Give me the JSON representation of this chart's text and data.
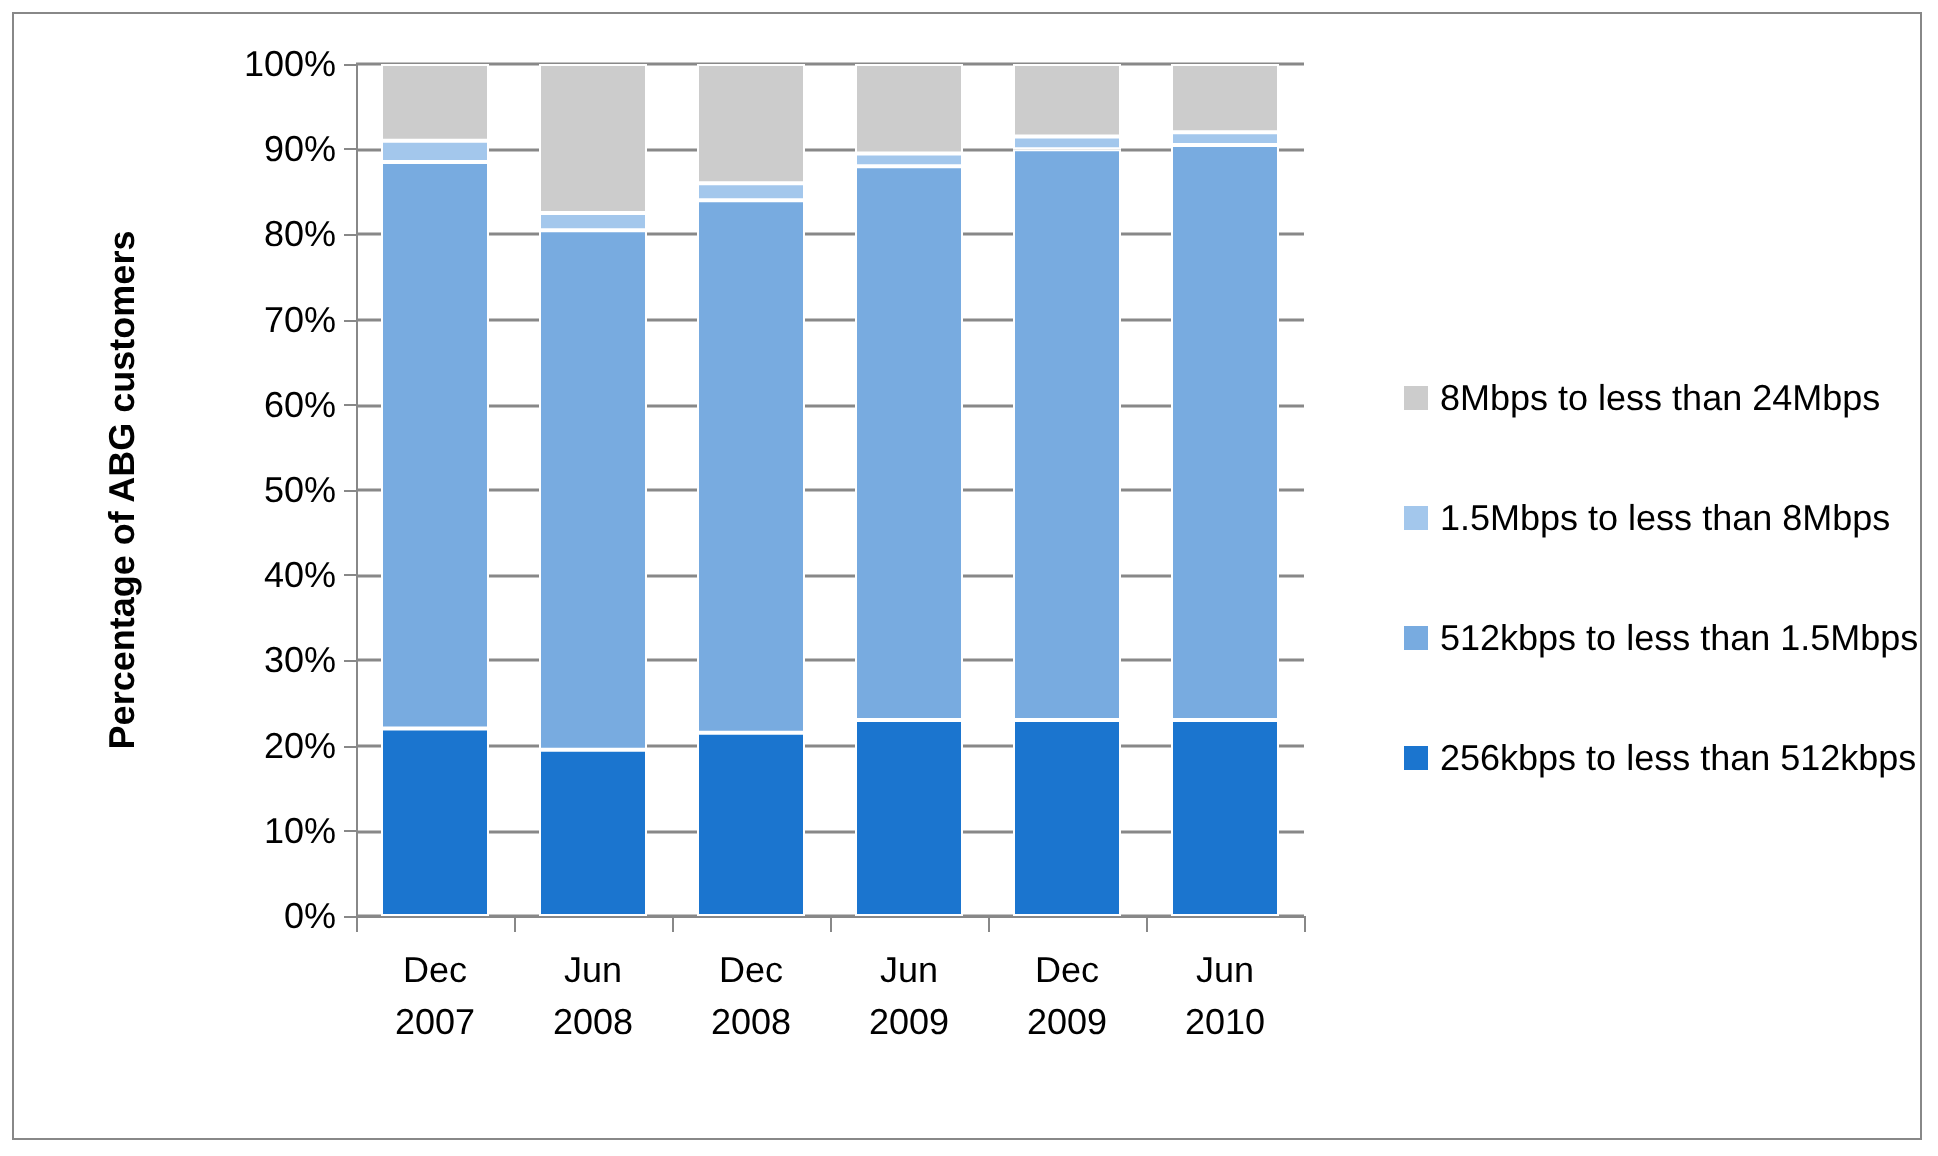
{
  "chart_data": {
    "type": "bar",
    "stacked": true,
    "ylabel": "Percentage of ABG customers",
    "categories": [
      "Dec\n2007",
      "Jun\n2008",
      "Dec\n2008",
      "Jun\n2009",
      "Dec\n2009",
      "Jun\n2010"
    ],
    "series": [
      {
        "name": "256kbps to less than 512kbps",
        "color": "#1b75cf",
        "values": [
          22,
          19.5,
          21.5,
          23,
          23,
          23
        ]
      },
      {
        "name": "512kbps to less than 1.5Mbps",
        "color": "#78abe0",
        "values": [
          66.5,
          61,
          62.5,
          65,
          67,
          67.5
        ]
      },
      {
        "name": "1.5Mbps to less than 8Mbps",
        "color": "#a3c7ec",
        "values": [
          2.5,
          2,
          2,
          1.5,
          1.5,
          1.5
        ]
      },
      {
        "name": "8Mbps to less than 24Mbps",
        "color": "#cccccc",
        "values": [
          9,
          17.5,
          14,
          10.5,
          8.5,
          8
        ]
      }
    ],
    "ylim": [
      0,
      100
    ],
    "yticks": [
      {
        "value": 0,
        "label": "0%"
      },
      {
        "value": 10,
        "label": "10%"
      },
      {
        "value": 20,
        "label": "20%"
      },
      {
        "value": 30,
        "label": "30%"
      },
      {
        "value": 40,
        "label": "40%"
      },
      {
        "value": 50,
        "label": "50%"
      },
      {
        "value": 60,
        "label": "60%"
      },
      {
        "value": 70,
        "label": "70%"
      },
      {
        "value": 80,
        "label": "80%"
      },
      {
        "value": 90,
        "label": "90%"
      },
      {
        "value": 100,
        "label": "100%"
      }
    ],
    "grid": "y",
    "legend": "right"
  }
}
